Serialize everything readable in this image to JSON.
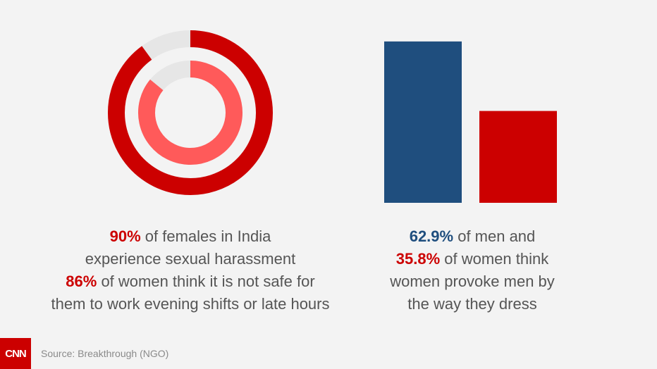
{
  "colors": {
    "background": "#f3f3f3",
    "outer_ring": "#cc0000",
    "inner_ring": "#ff5a5a",
    "ring_track": "#e6e6e6",
    "bar_men": "#1f4e7e",
    "bar_women": "#cc0000",
    "cnn_red": "#cc0000"
  },
  "chart_data": [
    {
      "type": "pie",
      "subtype": "donut",
      "series": [
        {
          "name": "",
          "value": 90
        },
        {
          "name": "",
          "value": 86
        }
      ]
    },
    {
      "type": "bar",
      "categories": [
        "men",
        "women"
      ],
      "values": [
        62.9,
        35.8
      ],
      "ylim": [
        0,
        70
      ]
    }
  ],
  "captions": {
    "left": {
      "stat1_value": "90%",
      "stat1_text_a": " of females in India",
      "stat1_text_b": "experience sexual harassment",
      "stat2_value": "86%",
      "stat2_text_a": " of women think it is not safe for",
      "stat2_text_b": "them to work evening shifts or late hours"
    },
    "right": {
      "stat1_value": "62.9%",
      "stat1_text": " of men and",
      "stat2_value": "35.8%",
      "stat2_text_a": " of women think",
      "stat2_text_b": "women provoke men by",
      "stat2_text_c": "the way they dress"
    }
  },
  "footer": {
    "logo_text": "CNN",
    "source": "Source: Breakthrough (NGO)"
  }
}
